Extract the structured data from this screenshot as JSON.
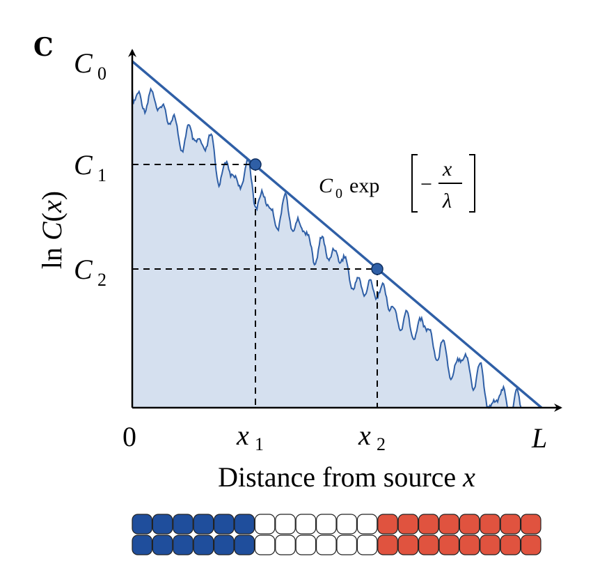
{
  "panel_label": "C",
  "axes": {
    "y_label": "ln C(x)",
    "x_label": "Distance from source x",
    "x_ticks": [
      "0",
      "x1",
      "x2",
      "L"
    ],
    "y_ticks": [
      "C0",
      "C1",
      "C2"
    ]
  },
  "labels": {
    "panel": "C",
    "ylabel_ln": "ln",
    "ylabel_C": "C",
    "ylabel_paren_open": "(",
    "ylabel_x": "x",
    "ylabel_paren_close": ")",
    "c0_main": "C",
    "c0_sub": "0",
    "c1_main": "C",
    "c1_sub": "1",
    "c2_main": "C",
    "c2_sub": "2",
    "x0": "0",
    "x1_main": "x",
    "x1_sub": "1",
    "x2_main": "x",
    "x2_sub": "2",
    "xL": "L",
    "xtitle_text": "Distance from source ",
    "xtitle_var": "x"
  },
  "annotation": {
    "coef_main": "C",
    "coef_sub": "0",
    "func": "exp",
    "minus": "−",
    "numerator": "x",
    "denominator": "λ"
  },
  "colors": {
    "line": "#2f5fa6",
    "fill": "#d5e0ef",
    "blue_cell": "#1f4e9c",
    "white_cell": "#ffffff",
    "red_cell": "#e0533f",
    "axis": "#000000"
  },
  "cells": {
    "rows": 2,
    "columns": [
      "blue",
      "blue",
      "blue",
      "blue",
      "blue",
      "blue",
      "white",
      "white",
      "white",
      "white",
      "white",
      "white",
      "red",
      "red",
      "red",
      "red",
      "red",
      "red",
      "red",
      "red"
    ]
  }
}
